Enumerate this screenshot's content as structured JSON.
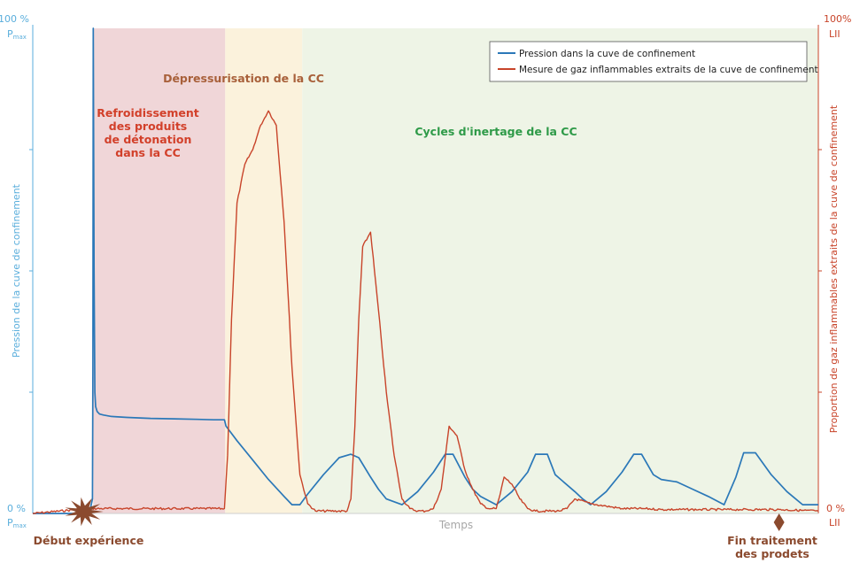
{
  "colors": {
    "pressure": "#2b78b8",
    "gas": "#c8442a",
    "left_axis": "#5aaedc",
    "right_axis": "#c8442a",
    "phase_cooling": "#f0d6d8",
    "phase_depressurisation": "#fbf2dc",
    "phase_inerting": "#eef4e6",
    "label_cooling": "#d2402a",
    "label_depressurisation": "#a8603a",
    "label_inerting": "#2e9a48",
    "event": "#8b4a2e"
  },
  "icons": {
    "start": "explosion-burst-icon",
    "end": "diamond-icon"
  },
  "chart_data": {
    "type": "line",
    "xlabel": "Temps",
    "xlim": [
      0,
      100
    ],
    "left_axis": {
      "label": "Pression de la cuve de confinement",
      "ylim": [
        0,
        100
      ],
      "top": "100 %",
      "top_sub": "Pmax",
      "bottom": "0 %",
      "bottom_sub": "Pmax"
    },
    "right_axis": {
      "label": "Proportion de gaz inflammables extraits de la cuve de confinement",
      "ylim": [
        0,
        100
      ],
      "top": "100%",
      "top_sub": "LII",
      "bottom": "0 %",
      "bottom_sub": "LII"
    },
    "legend": {
      "placement": "top-right",
      "entries": [
        "Pression dans la cuve de confinement",
        "Mesure de gaz inflammables extraits de la cuve de confinement"
      ]
    },
    "phases": [
      {
        "name": "Refroidissement des produits de détonation dans la CC",
        "lines": [
          "Refroidissement",
          "des produits",
          "de détonation",
          "dans la CC"
        ],
        "x0": 7.7,
        "x1": 24.5
      },
      {
        "name": "Dépressurisation de la CC",
        "lines": [
          "Dépressurisation de la CC"
        ],
        "x0": 24.5,
        "x1": 34.3
      },
      {
        "name": "Cycles d'inertage de la CC",
        "lines": [
          "Cycles d'inertage de la CC"
        ],
        "x0": 34.3,
        "x1": 100
      }
    ],
    "events": [
      {
        "label": "Début expérience",
        "lines": [
          "Début expérience"
        ],
        "x": 6.5
      },
      {
        "label": "Fin traitement des prodets",
        "lines": [
          "Fin traitement",
          "des prodets"
        ],
        "x": 95.0
      }
    ],
    "series": [
      {
        "name": "Pression dans la cuve de confinement",
        "axis": "left",
        "x": [
          0,
          7.2,
          7.6,
          7.65,
          7.7,
          7.8,
          7.9,
          8.0,
          8.2,
          8.5,
          9,
          10,
          12,
          15,
          18,
          21,
          23,
          24.4,
          24.6,
          26,
          28,
          30,
          32,
          33,
          34,
          35,
          37,
          39,
          40.5,
          41.5,
          43,
          44,
          45,
          47,
          49,
          51,
          52.5,
          53.5,
          55,
          56,
          57,
          59,
          61,
          63,
          64,
          65.5,
          66.5,
          67,
          69,
          70,
          71,
          73,
          75,
          76.5,
          77.5,
          79,
          80,
          82,
          84,
          86,
          88,
          89.5,
          90.5,
          92,
          94,
          96,
          98,
          100
        ],
        "values": [
          0,
          0,
          3,
          30,
          100,
          50,
          25,
          22,
          21,
          20.5,
          20.3,
          20,
          19.8,
          19.6,
          19.5,
          19.4,
          19.3,
          19.3,
          18,
          15,
          11,
          7,
          3.5,
          1.8,
          1.8,
          4,
          8,
          11.5,
          12.2,
          11.5,
          7.5,
          5,
          3,
          1.8,
          4.5,
          8.5,
          12.2,
          12.2,
          7.5,
          5,
          3.5,
          1.8,
          4.5,
          8.5,
          12.2,
          12.2,
          8,
          7.3,
          4.5,
          3,
          1.8,
          4.5,
          8.5,
          12.2,
          12.2,
          8,
          7,
          6.5,
          5,
          3.5,
          1.8,
          7.5,
          12.5,
          12.5,
          8,
          4.5,
          1.8,
          1.8
        ]
      },
      {
        "name": "Mesure de gaz inflammables extraits de la cuve de confinement",
        "axis": "right",
        "x": [
          0,
          7,
          24.4,
          24.8,
          25.3,
          26,
          27,
          28,
          29,
          30,
          31,
          32,
          33,
          34,
          35,
          36,
          40,
          40.5,
          41,
          41.5,
          42,
          43,
          44,
          45,
          46,
          47,
          48,
          49,
          50,
          51,
          52,
          53,
          54,
          55,
          56,
          57,
          58,
          58.5,
          59,
          59.5,
          60,
          61,
          62,
          63,
          64,
          67,
          68,
          69,
          71,
          73,
          75,
          78,
          80,
          85,
          90,
          95,
          100
        ],
        "values": [
          0,
          1,
          1,
          12,
          40,
          64,
          72,
          75,
          80,
          83,
          80,
          60,
          30,
          8,
          2,
          0.5,
          0.5,
          3,
          18,
          40,
          55,
          58,
          42,
          25,
          12,
          3,
          1,
          0.5,
          0.5,
          1,
          5,
          18,
          16,
          9,
          5,
          2,
          1,
          1,
          1,
          4,
          7.5,
          6,
          3,
          1,
          0.5,
          0.5,
          1,
          3,
          2,
          1.5,
          1,
          1,
          0.8,
          0.8,
          0.8,
          0.8,
          0.5
        ]
      }
    ]
  }
}
